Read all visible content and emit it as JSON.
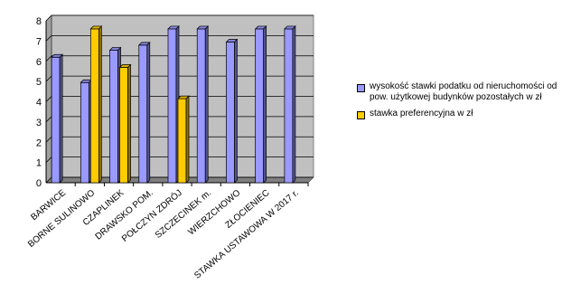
{
  "chart_data": {
    "type": "bar",
    "categories": [
      "BARWICE",
      "BORNE SULINOWO",
      "CZAPLINEK",
      "DRAWSKO POM.",
      "POŁCZYN ZDRÓJ",
      "SZCZECINEK m.",
      "WIERZCHOWO",
      "ZŁOCIENIEC",
      "STAWKA USTAWOWA W 2017 r."
    ],
    "series": [
      {
        "name": "wysokość stawki podatku od nieruchomości od pow. użytkowej budynków pozostałych w zł",
        "color": "#9999ff",
        "values": [
          6.2,
          4.95,
          6.55,
          6.8,
          7.6,
          7.6,
          6.95,
          7.6,
          7.6
        ]
      },
      {
        "name": "stawka preferencyjna w zł",
        "color": "#ffcc00",
        "values": [
          null,
          7.6,
          5.7,
          null,
          4.15,
          null,
          null,
          null,
          null
        ]
      }
    ],
    "yticks": [
      "0",
      "1",
      "2",
      "3",
      "4",
      "5",
      "6",
      "7",
      "8"
    ],
    "ylim": [
      0,
      8
    ],
    "grid": true,
    "plot_background": "#c0c0c0",
    "legend_position": "right"
  }
}
